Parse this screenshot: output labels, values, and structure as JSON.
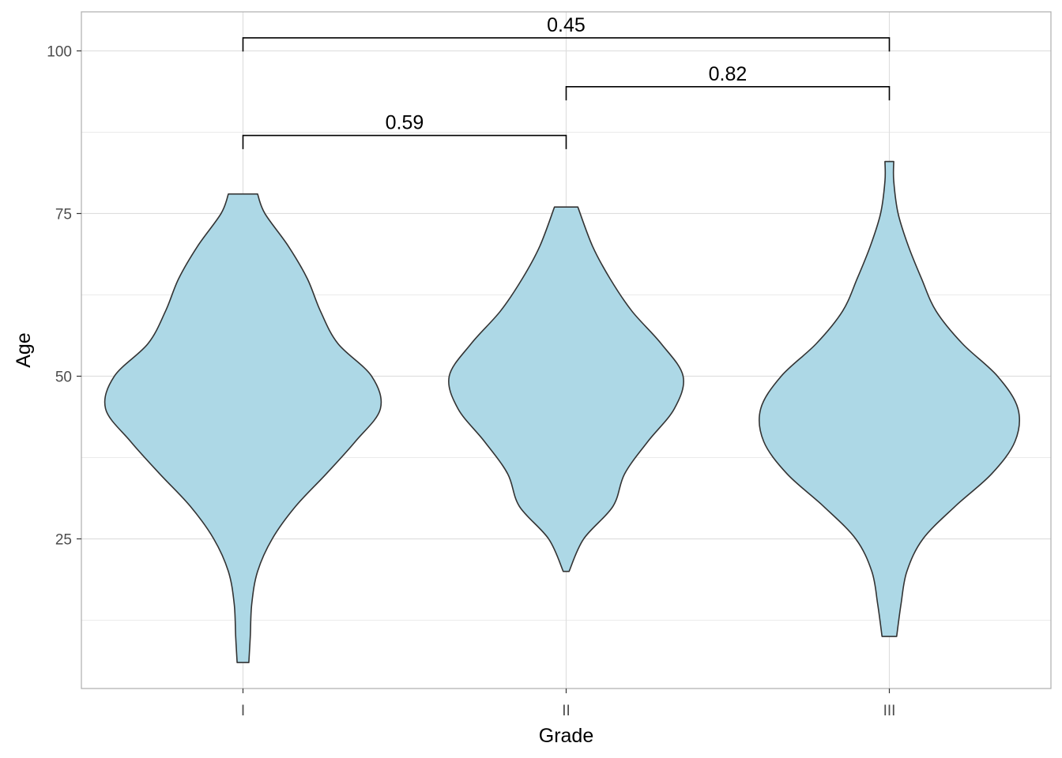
{
  "chart_data": {
    "type": "violin",
    "title": "",
    "xlabel": "Grade",
    "ylabel": "Age",
    "categories": [
      "I",
      "II",
      "III"
    ],
    "ylim": [
      2,
      106
    ],
    "yticks": [
      25,
      50,
      75,
      100
    ],
    "yticks_minor": [
      12.5,
      37.5,
      62.5,
      87.5
    ],
    "grid": true,
    "fill_color": "#add8e6",
    "outline_color": "#333333",
    "violins": [
      {
        "category": "I",
        "min": 6,
        "max": 78,
        "density": [
          [
            6,
            0.04
          ],
          [
            10,
            0.05
          ],
          [
            15,
            0.06
          ],
          [
            20,
            0.1
          ],
          [
            25,
            0.2
          ],
          [
            30,
            0.36
          ],
          [
            35,
            0.57
          ],
          [
            40,
            0.77
          ],
          [
            45,
            0.94
          ],
          [
            50,
            0.88
          ],
          [
            55,
            0.65
          ],
          [
            60,
            0.53
          ],
          [
            65,
            0.44
          ],
          [
            70,
            0.31
          ],
          [
            75,
            0.15
          ],
          [
            78,
            0.1
          ]
        ]
      },
      {
        "category": "II",
        "min": 20,
        "max": 76,
        "density": [
          [
            20,
            0.02
          ],
          [
            25,
            0.12
          ],
          [
            30,
            0.32
          ],
          [
            35,
            0.4
          ],
          [
            40,
            0.56
          ],
          [
            45,
            0.74
          ],
          [
            50,
            0.8
          ],
          [
            55,
            0.65
          ],
          [
            60,
            0.45
          ],
          [
            65,
            0.3
          ],
          [
            70,
            0.18
          ],
          [
            76,
            0.08
          ]
        ]
      },
      {
        "category": "III",
        "min": 10,
        "max": 83,
        "density": [
          [
            10,
            0.05
          ],
          [
            15,
            0.08
          ],
          [
            20,
            0.12
          ],
          [
            25,
            0.23
          ],
          [
            30,
            0.45
          ],
          [
            35,
            0.7
          ],
          [
            40,
            0.86
          ],
          [
            45,
            0.88
          ],
          [
            50,
            0.74
          ],
          [
            55,
            0.5
          ],
          [
            60,
            0.32
          ],
          [
            65,
            0.22
          ],
          [
            70,
            0.13
          ],
          [
            75,
            0.06
          ],
          [
            80,
            0.03
          ],
          [
            83,
            0.03
          ]
        ]
      }
    ],
    "comparisons": [
      {
        "group1": "I",
        "group2": "II",
        "label": "0.59",
        "y": 87,
        "tip": 2.1
      },
      {
        "group1": "II",
        "group2": "III",
        "label": "0.82",
        "y": 94.5,
        "tip": 2.1
      },
      {
        "group1": "I",
        "group2": "III",
        "label": "0.45",
        "y": 102,
        "tip": 2.1
      }
    ]
  }
}
